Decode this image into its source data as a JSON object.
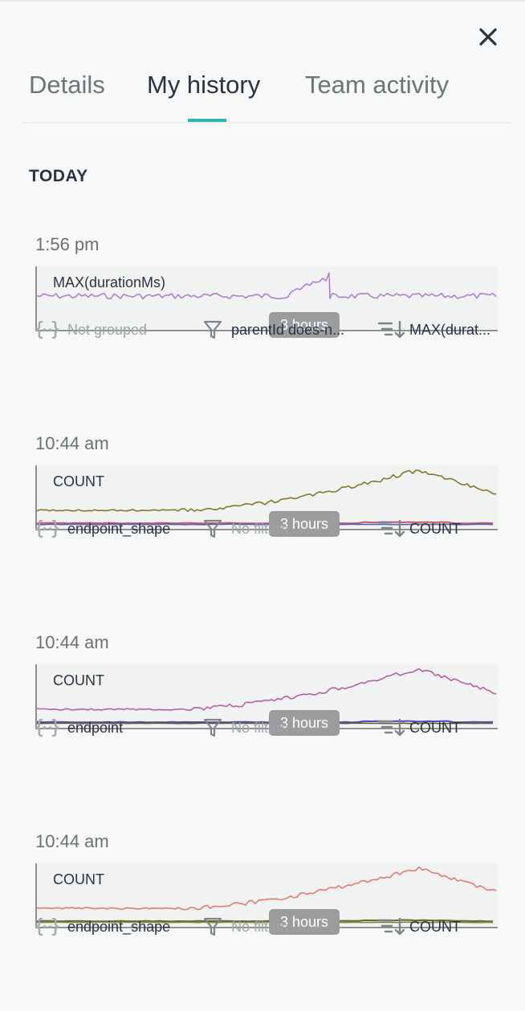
{
  "tabs": [
    {
      "label": "Details",
      "active": false
    },
    {
      "label": "My history",
      "active": true
    },
    {
      "label": "Team activity",
      "active": false
    }
  ],
  "section_title": "TODAY",
  "entries": [
    {
      "time": "1:56 pm",
      "chart_label": "MAX(durationMs)",
      "duration": "3 hours",
      "group": "Not grouped",
      "group_dim": true,
      "filter": "parentId does-n...",
      "filter_dim": false,
      "sort": "MAX(durat...",
      "series_colors": [
        "#b07fd0"
      ]
    },
    {
      "time": "10:44 am",
      "chart_label": "COUNT",
      "duration": "3 hours",
      "group": "endpoint_shape",
      "group_dim": false,
      "filter": "No filters",
      "filter_dim": true,
      "sort": "COUNT",
      "series_colors": [
        "#857a2c",
        "#d05a5a",
        "#4d5bc0"
      ]
    },
    {
      "time": "10:44 am",
      "chart_label": "COUNT",
      "duration": "3 hours",
      "group": "endpoint",
      "group_dim": false,
      "filter": "No filters",
      "filter_dim": true,
      "sort": "COUNT",
      "series_colors": [
        "#b8609f",
        "#4a48c4",
        "#6b5a30"
      ]
    },
    {
      "time": "10:44 am",
      "chart_label": "COUNT",
      "duration": "3 hours",
      "group": "endpoint_shape",
      "group_dim": false,
      "filter": "No filters",
      "filter_dim": true,
      "sort": "COUNT",
      "series_colors": [
        "#e07a72",
        "#5f6a2c",
        "#7a8a3a"
      ]
    }
  ]
}
